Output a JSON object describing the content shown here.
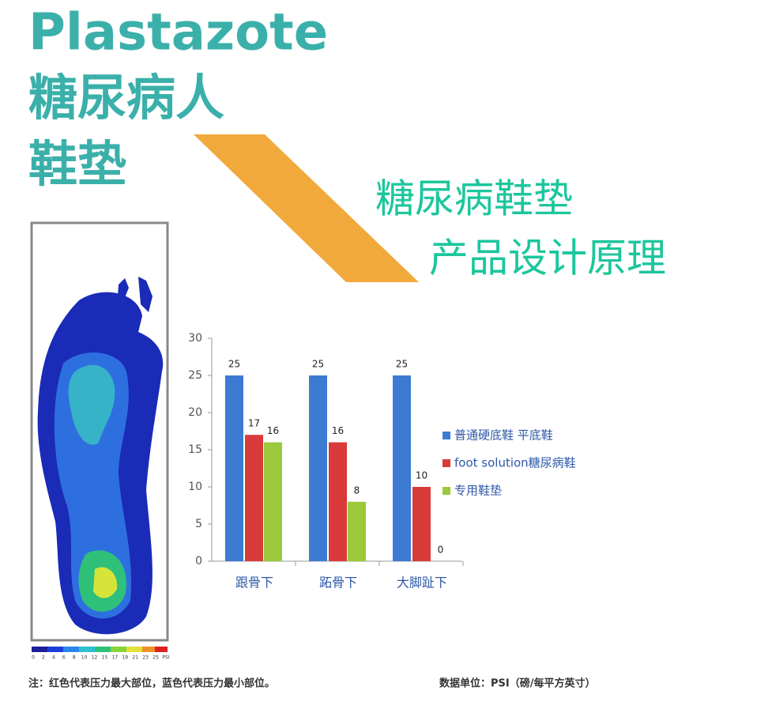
{
  "header": {
    "title": "Plastazote",
    "line2": "糖尿病人",
    "line3": "鞋垫",
    "subtitle1": "糖尿病鞋垫",
    "subtitle2": "产品设计原理"
  },
  "heatmap": {
    "scale_labels": [
      "0",
      "2",
      "4",
      "6",
      "8",
      "10",
      "12",
      "15",
      "17",
      "19",
      "21",
      "23",
      "25",
      "PSI"
    ]
  },
  "notes": {
    "left": "注：红色代表压力最大部位，蓝色代表压力最小部位。",
    "right": "数据单位：PSI（磅/每平方英寸）"
  },
  "chart_data": {
    "type": "bar",
    "categories": [
      "跟骨下",
      "跖骨下",
      "大脚趾下"
    ],
    "series": [
      {
        "name": "普通硬底鞋 平底鞋",
        "color": "#3d7bd3",
        "values": [
          25,
          25,
          25
        ]
      },
      {
        "name": "foot solution糖尿病鞋",
        "color": "#d93a3a",
        "values": [
          17,
          16,
          10
        ]
      },
      {
        "name": "专用鞋垫",
        "color": "#9cc93b",
        "values": [
          16,
          8,
          0
        ]
      }
    ],
    "ylim": [
      0,
      30
    ],
    "yticks": [
      0,
      5,
      10,
      15,
      20,
      25,
      30
    ],
    "grid": false
  }
}
